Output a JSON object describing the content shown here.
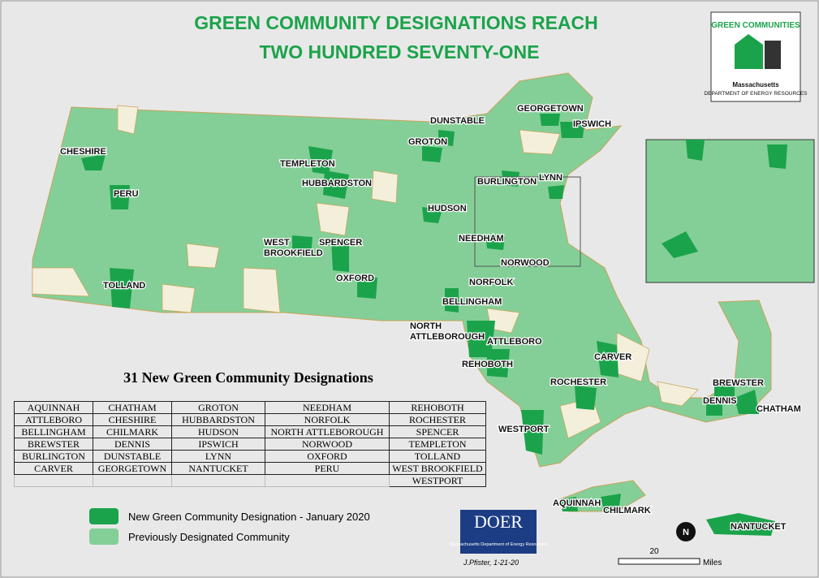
{
  "header": {
    "title_lines": [
      "GREEN COMMUNITY DESIGNATIONS REACH",
      "TWO HUNDRED SEVENTY-ONE"
    ]
  },
  "logo": {
    "title": "GREEN COMMUNITIES",
    "state": "Massachusetts",
    "department": "DEPARTMENT OF ENERGY RESOURCES"
  },
  "map_labels": [
    [
      "CHESHIRE"
    ],
    [
      "PERU"
    ],
    [
      "TOLLAND"
    ],
    [
      "TEMPLETON"
    ],
    [
      "HUBBARDSTON"
    ],
    [
      "WEST",
      "BROOKFIELD"
    ],
    [
      "SPENCER"
    ],
    [
      "OXFORD"
    ],
    [
      "DUNSTABLE"
    ],
    [
      "GROTON"
    ],
    [
      "HUDSON"
    ],
    [
      "GEORGETOWN"
    ],
    [
      "IPSWICH"
    ],
    [
      "BURLINGTON"
    ],
    [
      "LYNN"
    ],
    [
      "NEEDHAM"
    ],
    [
      "NORWOOD"
    ],
    [
      "NORFOLK"
    ],
    [
      "BELLINGHAM"
    ],
    [
      "NORTH",
      "ATTLEBOROUGH"
    ],
    [
      "ATTLEBORO"
    ],
    [
      "REHOBOTH"
    ],
    [
      "CARVER"
    ],
    [
      "ROCHESTER"
    ],
    [
      "WESTPORT"
    ],
    [
      "BREWSTER"
    ],
    [
      "DENNIS"
    ],
    [
      "CHATHAM"
    ],
    [
      "AQUINNAH"
    ],
    [
      "CHILMARK"
    ],
    [
      "NANTUCKET"
    ]
  ],
  "table": {
    "title": "31 New Green Community Designations",
    "columns": [
      [
        "AQUINNAH",
        "ATTLEBORO",
        "BELLINGHAM",
        "BREWSTER",
        "BURLINGTON",
        "CARVER"
      ],
      [
        "CHATHAM",
        "CHESHIRE",
        "CHILMARK",
        "DENNIS",
        "DUNSTABLE",
        "GEORGETOWN"
      ],
      [
        "GROTON",
        "HUBBARDSTON",
        "HUDSON",
        "IPSWICH",
        "LYNN",
        "NANTUCKET"
      ],
      [
        "NEEDHAM",
        "NORFOLK",
        "NORTH ATTLEBOROUGH",
        "NORWOOD",
        "OXFORD",
        "PERU"
      ],
      [
        "REHOBOTH",
        "ROCHESTER",
        "SPENCER",
        "TEMPLETON",
        "TOLLAND",
        "WEST BROOKFIELD",
        "WESTPORT"
      ]
    ]
  },
  "legend": [
    {
      "label": "New Green Community Designation - January 2020",
      "color": "#1ba34b"
    },
    {
      "label": "Previously Designated Community",
      "color": "#84cf97"
    }
  ],
  "doer": {
    "mark": "DOER",
    "text": "Massachusetts Department of Energy Resources"
  },
  "credit": "J.Pfister, 1-21-20",
  "scale": {
    "distance": "20",
    "unit": "Miles"
  },
  "north": "N"
}
